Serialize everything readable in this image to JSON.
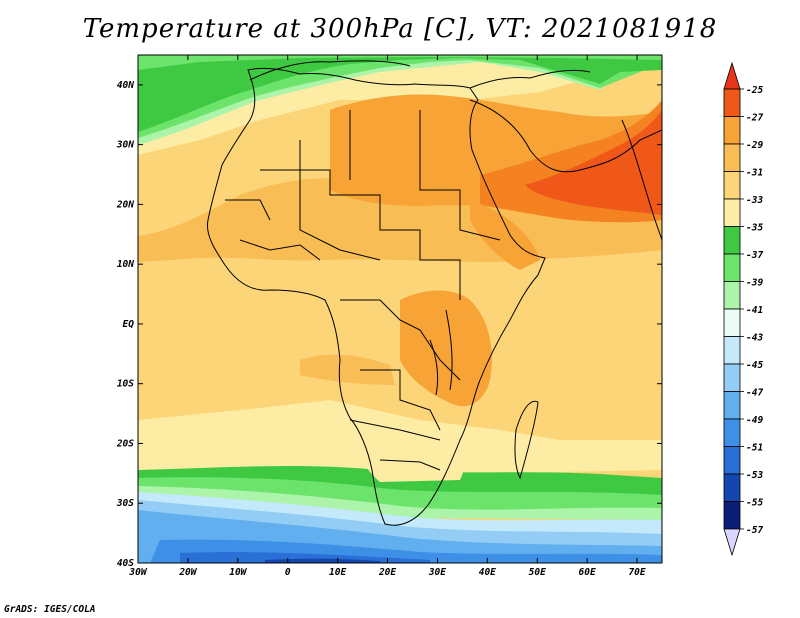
{
  "title": "Temperature at 300hPa [C], VT: 2021081918",
  "credit": "GrADS: IGES/COLA",
  "x_ticks": [
    "30W",
    "20W",
    "10W",
    "0",
    "10E",
    "20E",
    "30E",
    "40E",
    "50E",
    "60E",
    "70E"
  ],
  "y_ticks": [
    "40N",
    "30N",
    "20N",
    "10N",
    "EQ",
    "10S",
    "20S",
    "30S",
    "40S"
  ],
  "legend": [
    {
      "label": "-25",
      "color": "#f0581a"
    },
    {
      "label": "-27",
      "color": "#f58220"
    },
    {
      "label": "-29",
      "color": "#f7a335"
    },
    {
      "label": "-31",
      "color": "#f9bd55"
    },
    {
      "label": "-33",
      "color": "#fbd578"
    },
    {
      "label": "-35",
      "color": "#fdeca3"
    },
    {
      "label": "-37",
      "color": "#3fc942"
    },
    {
      "label": "-39",
      "color": "#6ce46c"
    },
    {
      "label": "-41",
      "color": "#abf4a9"
    },
    {
      "label": "-43",
      "color": "#eafcf7"
    },
    {
      "label": "-45",
      "color": "#c3e9fb"
    },
    {
      "label": "-47",
      "color": "#93cdf5"
    },
    {
      "label": "-49",
      "color": "#62aff0"
    },
    {
      "label": "-51",
      "color": "#3e8fe6"
    },
    {
      "label": "-53",
      "color": "#2a6fd6"
    },
    {
      "label": "-55",
      "color": "#1447ae"
    },
    {
      "label": "-57",
      "color": "#0c1f78"
    }
  ],
  "legend_extreme_colors": {
    "top": "#e8361a",
    "bottom": "#d9d6ff"
  }
}
